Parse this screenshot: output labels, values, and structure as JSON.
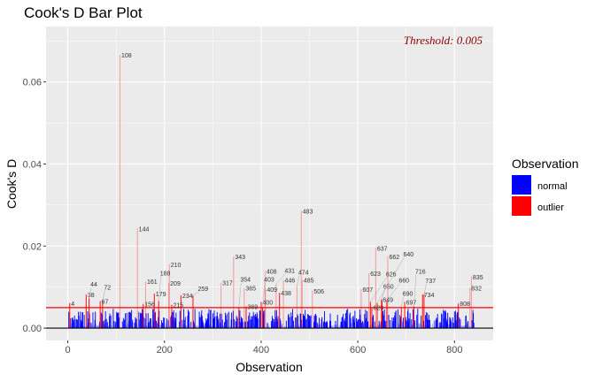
{
  "chart_data": {
    "type": "bar",
    "title": "Cook's D Bar Plot",
    "xlabel": "Observation",
    "ylabel": "Cook's D",
    "xlim": [
      -45,
      880
    ],
    "ylim": [
      -0.003,
      0.0735
    ],
    "x_ticks": [
      0,
      200,
      400,
      600,
      800
    ],
    "x_tick_labels": [
      "0",
      "200",
      "400",
      "600",
      "800"
    ],
    "y_ticks": [
      0,
      0.02,
      0.04,
      0.06
    ],
    "y_tick_labels": [
      "0.00",
      "0.02",
      "0.04",
      "0.06"
    ],
    "threshold": 0.005,
    "threshold_label": "Threshold: 0.005",
    "n_observations": 840,
    "normal_max": 0.005,
    "legend": {
      "title": "Observation",
      "position": "right",
      "entries": [
        {
          "label": "normal",
          "color": "#0000FF"
        },
        {
          "label": "outlier",
          "color": "#FF0000"
        }
      ]
    },
    "outliers": [
      {
        "obs": 4,
        "value": 0.0061,
        "label": "4"
      },
      {
        "obs": 38,
        "value": 0.0082,
        "label": "38"
      },
      {
        "obs": 44,
        "value": 0.0073,
        "label": "44"
      },
      {
        "obs": 67,
        "value": 0.0066,
        "label": "67"
      },
      {
        "obs": 72,
        "value": 0.0066,
        "label": "72"
      },
      {
        "obs": 108,
        "value": 0.0666,
        "label": "108"
      },
      {
        "obs": 144,
        "value": 0.0243,
        "label": "144"
      },
      {
        "obs": 156,
        "value": 0.0059,
        "label": "156"
      },
      {
        "obs": 161,
        "value": 0.0114,
        "label": "161"
      },
      {
        "obs": 179,
        "value": 0.0084,
        "label": "179"
      },
      {
        "obs": 188,
        "value": 0.0066,
        "label": "188"
      },
      {
        "obs": 209,
        "value": 0.011,
        "label": "209"
      },
      {
        "obs": 210,
        "value": 0.0155,
        "label": "210"
      },
      {
        "obs": 215,
        "value": 0.0057,
        "label": "215"
      },
      {
        "obs": 234,
        "value": 0.008,
        "label": "234"
      },
      {
        "obs": 259,
        "value": 0.008,
        "label": "259"
      },
      {
        "obs": 317,
        "value": 0.0111,
        "label": "317"
      },
      {
        "obs": 343,
        "value": 0.0175,
        "label": "343"
      },
      {
        "obs": 354,
        "value": 0.0051,
        "label": "354"
      },
      {
        "obs": 365,
        "value": 0.0098,
        "label": "365"
      },
      {
        "obs": 369,
        "value": 0.0053,
        "label": "369"
      },
      {
        "obs": 400,
        "value": 0.0064,
        "label": "400"
      },
      {
        "obs": 403,
        "value": 0.0051,
        "label": "403"
      },
      {
        "obs": 408,
        "value": 0.0139,
        "label": "408"
      },
      {
        "obs": 409,
        "value": 0.0095,
        "label": "409"
      },
      {
        "obs": 431,
        "value": 0.0107,
        "label": "431"
      },
      {
        "obs": 438,
        "value": 0.0086,
        "label": "438"
      },
      {
        "obs": 446,
        "value": 0.0118,
        "label": "446"
      },
      {
        "obs": 474,
        "value": 0.0102,
        "label": "474"
      },
      {
        "obs": 483,
        "value": 0.0286,
        "label": "483"
      },
      {
        "obs": 485,
        "value": 0.0118,
        "label": "485"
      },
      {
        "obs": 506,
        "value": 0.0091,
        "label": "506"
      },
      {
        "obs": 607,
        "value": 0.0095,
        "label": "607"
      },
      {
        "obs": 623,
        "value": 0.0134,
        "label": "623"
      },
      {
        "obs": 626,
        "value": 0.0064,
        "label": "626"
      },
      {
        "obs": 629,
        "value": 0.0051,
        "label": "629"
      },
      {
        "obs": 637,
        "value": 0.0195,
        "label": "637"
      },
      {
        "obs": 640,
        "value": 0.0061,
        "label": "640"
      },
      {
        "obs": 649,
        "value": 0.007,
        "label": "649"
      },
      {
        "obs": 650,
        "value": 0.0068,
        "label": "650"
      },
      {
        "obs": 660,
        "value": 0.0066,
        "label": "660"
      },
      {
        "obs": 662,
        "value": 0.0175,
        "label": "662"
      },
      {
        "obs": 690,
        "value": 0.0051,
        "label": "690"
      },
      {
        "obs": 697,
        "value": 0.0064,
        "label": "697"
      },
      {
        "obs": 716,
        "value": 0.0053,
        "label": "716"
      },
      {
        "obs": 734,
        "value": 0.0082,
        "label": "734"
      },
      {
        "obs": 737,
        "value": 0.0082,
        "label": "737"
      },
      {
        "obs": 808,
        "value": 0.006,
        "label": "808"
      },
      {
        "obs": 832,
        "value": 0.0098,
        "label": "832"
      },
      {
        "obs": 835,
        "value": 0.0125,
        "label": "835"
      }
    ]
  }
}
